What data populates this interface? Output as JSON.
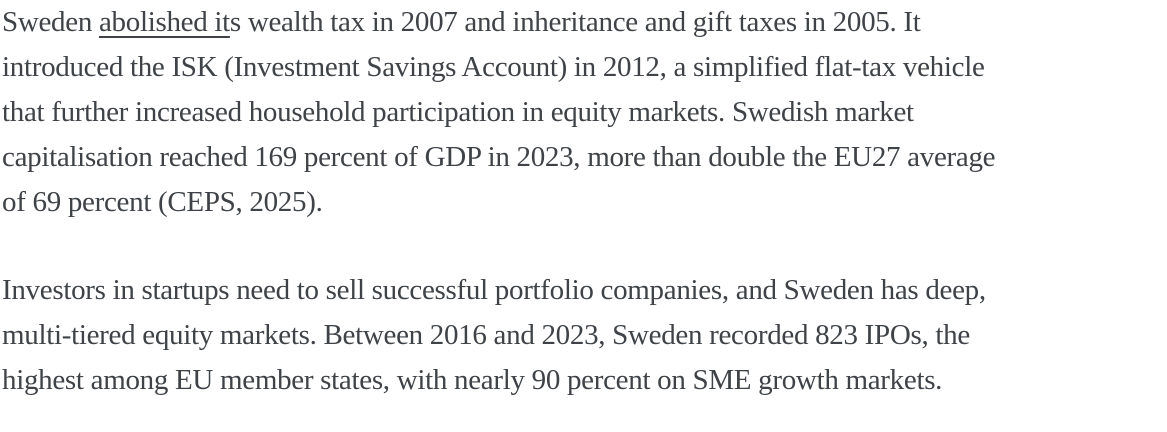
{
  "page": {
    "background_color": "#ffffff",
    "text_color": "#3f4347"
  },
  "document": {
    "paragraphs": [
      {
        "lines": [
          {
            "segments": [
              {
                "text": "Sweden ",
                "underline": false
              },
              {
                "text": "abolished it",
                "underline": true,
                "name": "abolished-it-link"
              },
              {
                "text": "s wealth tax in 2007 and inheritance and gift taxes in 2005. It",
                "underline": false
              }
            ]
          },
          {
            "segments": [
              {
                "text": "introduced the ISK (Investment Savings Account) in 2012, a simplified flat-tax vehicle",
                "underline": false
              }
            ]
          },
          {
            "segments": [
              {
                "text": "that further increased household participation in equity markets. Swedish market",
                "underline": false
              }
            ]
          },
          {
            "segments": [
              {
                "text": "capitalisation reached 169 percent of GDP in 2023, more than double the EU27 average",
                "underline": false
              }
            ]
          },
          {
            "segments": [
              {
                "text": "of 69 percent (CEPS, 2025).",
                "underline": false
              }
            ]
          }
        ]
      },
      {
        "lines": [
          {
            "segments": [
              {
                "text": "Investors in startups need to sell successful portfolio companies, and Sweden has deep,",
                "underline": false
              }
            ]
          },
          {
            "segments": [
              {
                "text": "multi-tiered equity markets. Between 2016 and 2023, Sweden recorded 823 IPOs, the",
                "underline": false
              }
            ]
          },
          {
            "segments": [
              {
                "text": "highest among EU member states, with nearly 90 percent on SME growth markets.",
                "underline": false
              }
            ]
          }
        ]
      }
    ]
  }
}
